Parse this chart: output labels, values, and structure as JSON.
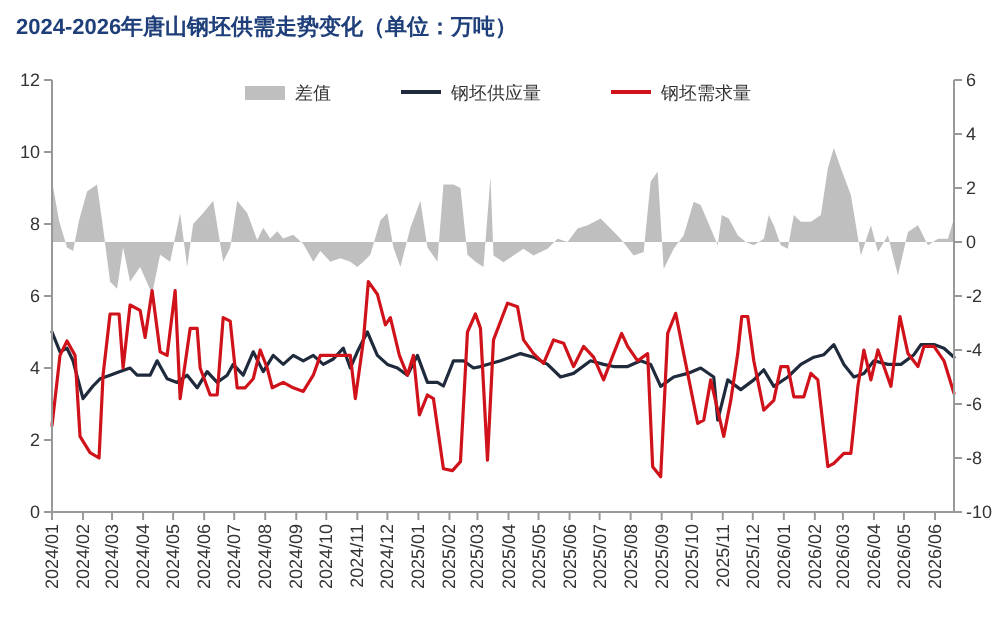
{
  "chart_data": {
    "type": "line",
    "title": "2024-2026年唐山钢坯供需走势变化（单位：万吨）",
    "legend": "top",
    "xlim": [
      "2024-01-01",
      "2026-06-20"
    ],
    "xticks": [
      {
        "value": "2024-01-01",
        "label": "2024/01"
      },
      {
        "value": "2024-02-01",
        "label": "2024/02"
      },
      {
        "value": "2024-03-01",
        "label": "2024/03"
      },
      {
        "value": "2024-04-01",
        "label": "2024/04"
      },
      {
        "value": "2024-05-01",
        "label": "2024/05"
      },
      {
        "value": "2024-06-01",
        "label": "2024/06"
      },
      {
        "value": "2024-07-01",
        "label": "2024/07"
      },
      {
        "value": "2024-08-01",
        "label": "2024/08"
      },
      {
        "value": "2024-09-01",
        "label": "2024/09"
      },
      {
        "value": "2024-10-01",
        "label": "2024/10"
      },
      {
        "value": "2024-11-01",
        "label": "2024/11"
      },
      {
        "value": "2024-12-01",
        "label": "2024/12"
      },
      {
        "value": "2025-01-01",
        "label": "2025/01"
      },
      {
        "value": "2025-02-01",
        "label": "2025/02"
      },
      {
        "value": "2025-03-01",
        "label": "2025/03"
      },
      {
        "value": "2025-04-01",
        "label": "2025/04"
      },
      {
        "value": "2025-05-01",
        "label": "2025/05"
      },
      {
        "value": "2025-06-01",
        "label": "2025/06"
      },
      {
        "value": "2025-07-01",
        "label": "2025/07"
      },
      {
        "value": "2025-08-01",
        "label": "2025/08"
      },
      {
        "value": "2025-09-01",
        "label": "2025/09"
      },
      {
        "value": "2025-10-01",
        "label": "2025/10"
      },
      {
        "value": "2025-11-01",
        "label": "2025/11"
      },
      {
        "value": "2025-12-01",
        "label": "2025/12"
      },
      {
        "value": "2026-01-01",
        "label": "2026/01"
      },
      {
        "value": "2026-02-01",
        "label": "2026/02"
      },
      {
        "value": "2026-03-01",
        "label": "2026/03"
      },
      {
        "value": "2026-04-01",
        "label": "2026/04"
      },
      {
        "value": "2026-05-01",
        "label": "2026/05"
      },
      {
        "value": "2026-06-01",
        "label": "2026/06"
      }
    ],
    "ylim": [
      0,
      12
    ],
    "yticks": [
      0,
      2,
      4,
      6,
      8,
      10,
      12
    ],
    "y2lim": [
      -10,
      6
    ],
    "y2ticks": [
      -10,
      -8,
      -6,
      -4,
      -2,
      0,
      2,
      4,
      6
    ],
    "series": [
      {
        "name": "差值",
        "type": "area",
        "axis": "y2",
        "color": "#bfbfbf",
        "x": [
          "2024-01-01",
          "2024-01-08",
          "2024-01-16",
          "2024-01-22",
          "2024-01-28",
          "2024-02-05",
          "2024-02-15",
          "2024-02-21",
          "2024-02-28",
          "2024-03-06",
          "2024-03-12",
          "2024-03-19",
          "2024-03-29",
          "2024-04-10",
          "2024-04-18",
          "2024-04-28",
          "2024-05-08",
          "2024-05-15",
          "2024-05-21",
          "2024-05-31",
          "2024-06-10",
          "2024-06-20",
          "2024-06-27",
          "2024-07-04",
          "2024-07-14",
          "2024-07-24",
          "2024-07-30",
          "2024-08-06",
          "2024-08-13",
          "2024-08-19",
          "2024-08-29",
          "2024-09-08",
          "2024-09-18",
          "2024-09-25",
          "2024-10-05",
          "2024-10-15",
          "2024-10-25",
          "2024-11-01",
          "2024-11-07",
          "2024-11-14",
          "2024-11-24",
          "2024-12-01",
          "2024-12-07",
          "2024-12-14",
          "2024-12-24",
          "2025-01-03",
          "2025-01-10",
          "2025-01-20",
          "2025-01-26",
          "2025-02-05",
          "2025-02-12",
          "2025-02-19",
          "2025-02-27",
          "2025-03-07",
          "2025-03-14",
          "2025-03-17",
          "2025-03-27",
          "2025-04-06",
          "2025-04-16",
          "2025-04-26",
          "2025-05-10",
          "2025-05-20",
          "2025-05-30",
          "2025-06-09",
          "2025-06-19",
          "2025-07-02",
          "2025-07-12",
          "2025-07-22",
          "2025-08-04",
          "2025-08-14",
          "2025-08-21",
          "2025-08-28",
          "2025-09-03",
          "2025-09-13",
          "2025-09-23",
          "2025-10-03",
          "2025-10-10",
          "2025-10-20",
          "2025-10-27",
          "2025-10-31",
          "2025-11-07",
          "2025-11-16",
          "2025-11-24",
          "2025-12-02",
          "2025-12-12",
          "2025-12-17",
          "2025-12-22",
          "2025-12-29",
          "2026-01-05",
          "2026-01-11",
          "2026-01-18",
          "2026-01-28",
          "2026-02-07",
          "2026-02-14",
          "2026-02-20",
          "2026-02-27",
          "2026-03-09",
          "2026-03-19",
          "2026-03-29",
          "2026-04-05",
          "2026-04-15",
          "2026-04-25",
          "2026-05-05",
          "2026-05-15",
          "2026-05-25",
          "2026-06-04",
          "2026-06-14",
          "2026-06-20"
        ],
        "values": [
          2.27,
          0.8,
          -0.2,
          -0.33,
          0.8,
          1.87,
          2.13,
          0.53,
          -1.47,
          -1.73,
          -0.2,
          -1.47,
          -0.93,
          -1.93,
          -0.47,
          -0.73,
          1.07,
          -0.93,
          0.67,
          1.07,
          1.53,
          -0.73,
          -0.2,
          1.53,
          1.07,
          0.07,
          0.53,
          0.13,
          0.4,
          0.13,
          0.27,
          -0.07,
          -0.73,
          -0.33,
          -0.73,
          -0.6,
          -0.73,
          -0.93,
          -0.73,
          -0.47,
          0.8,
          1.07,
          -0.2,
          -0.93,
          0.53,
          1.53,
          -0.2,
          -0.73,
          2.13,
          2.13,
          2.0,
          -0.47,
          -0.73,
          -0.93,
          2.4,
          -0.5,
          -0.75,
          -0.5,
          -0.25,
          -0.5,
          -0.25,
          0.12,
          0,
          0.5,
          0.62,
          0.87,
          0.5,
          0.12,
          -0.5,
          -0.37,
          2.24,
          2.61,
          -1.0,
          -0.25,
          0.25,
          1.49,
          1.37,
          0.5,
          -0.12,
          1.0,
          0.87,
          0.25,
          0,
          -0.12,
          0.12,
          1.0,
          0.62,
          -0.12,
          -0.25,
          1.0,
          0.75,
          0.75,
          1.0,
          2.73,
          3.48,
          2.73,
          1.74,
          -0.5,
          0.62,
          -0.37,
          0.25,
          -1.24,
          0.37,
          0.62,
          -0.12,
          0.12,
          0.12,
          0.87
        ]
      },
      {
        "name": "钢坯供应量",
        "color": "#1f2a3c",
        "x": [
          "2024-01-01",
          "2024-01-09",
          "2024-01-16",
          "2024-01-22",
          "2024-02-01",
          "2024-02-11",
          "2024-02-18",
          "2024-02-28",
          "2024-03-09",
          "2024-03-19",
          "2024-03-26",
          "2024-04-08",
          "2024-04-15",
          "2024-04-25",
          "2024-05-05",
          "2024-05-15",
          "2024-05-25",
          "2024-06-04",
          "2024-06-14",
          "2024-06-24",
          "2024-06-30",
          "2024-07-10",
          "2024-07-20",
          "2024-07-30",
          "2024-08-09",
          "2024-08-19",
          "2024-08-29",
          "2024-09-08",
          "2024-09-18",
          "2024-09-28",
          "2024-10-08",
          "2024-10-18",
          "2024-10-25",
          "2024-11-01",
          "2024-11-11",
          "2024-11-21",
          "2024-12-01",
          "2024-12-11",
          "2024-12-21",
          "2024-12-31",
          "2025-01-10",
          "2025-01-20",
          "2025-01-26",
          "2025-02-05",
          "2025-02-15",
          "2025-02-25",
          "2025-03-04",
          "2025-03-24",
          "2025-04-13",
          "2025-04-26",
          "2025-05-10",
          "2025-05-23",
          "2025-06-05",
          "2025-06-22",
          "2025-07-05",
          "2025-07-15",
          "2025-07-29",
          "2025-08-11",
          "2025-08-21",
          "2025-08-31",
          "2025-09-13",
          "2025-09-27",
          "2025-10-10",
          "2025-10-23",
          "2025-10-27",
          "2025-11-06",
          "2025-11-19",
          "2025-12-02",
          "2025-12-12",
          "2025-12-22",
          "2026-01-05",
          "2026-01-18",
          "2026-01-31",
          "2026-02-10",
          "2026-02-20",
          "2026-03-02",
          "2026-03-12",
          "2026-03-22",
          "2026-04-01",
          "2026-04-15",
          "2026-04-28",
          "2026-05-11",
          "2026-05-18",
          "2026-05-31",
          "2026-06-10",
          "2026-06-20"
        ],
        "values": [
          5.0,
          4.45,
          4.55,
          4.2,
          3.15,
          3.5,
          3.7,
          3.8,
          3.9,
          4.0,
          3.8,
          3.8,
          4.2,
          3.7,
          3.6,
          3.8,
          3.45,
          3.9,
          3.6,
          3.8,
          4.1,
          3.8,
          4.45,
          3.9,
          4.35,
          4.1,
          4.35,
          4.2,
          4.35,
          4.1,
          4.25,
          4.55,
          4.0,
          4.45,
          5.0,
          4.35,
          4.1,
          4.0,
          3.8,
          4.35,
          3.6,
          3.6,
          3.5,
          4.2,
          4.2,
          4.0,
          4.04,
          4.2,
          4.4,
          4.3,
          4.1,
          3.75,
          3.85,
          4.2,
          4.1,
          4.04,
          4.04,
          4.2,
          4.1,
          3.49,
          3.75,
          3.85,
          4.0,
          3.75,
          2.55,
          3.67,
          3.4,
          3.67,
          3.95,
          3.49,
          3.75,
          4.1,
          4.3,
          4.37,
          4.65,
          4.1,
          3.75,
          3.85,
          4.2,
          4.1,
          4.1,
          4.37,
          4.65,
          4.65,
          4.55,
          4.3
        ]
      },
      {
        "name": "钢坯需求量",
        "color": "#d0121b",
        "x": [
          "2024-01-01",
          "2024-01-09",
          "2024-01-16",
          "2024-01-24",
          "2024-01-29",
          "2024-02-08",
          "2024-02-17",
          "2024-02-21",
          "2024-02-28",
          "2024-03-08",
          "2024-03-12",
          "2024-03-19",
          "2024-03-29",
          "2024-04-03",
          "2024-04-10",
          "2024-04-18",
          "2024-04-25",
          "2024-05-03",
          "2024-05-08",
          "2024-05-18",
          "2024-05-25",
          "2024-05-28",
          "2024-06-07",
          "2024-06-14",
          "2024-06-20",
          "2024-06-27",
          "2024-07-04",
          "2024-07-12",
          "2024-07-20",
          "2024-07-27",
          "2024-08-03",
          "2024-08-08",
          "2024-08-19",
          "2024-08-29",
          "2024-09-08",
          "2024-09-18",
          "2024-09-25",
          "2024-10-02",
          "2024-10-08",
          "2024-10-15",
          "2024-10-25",
          "2024-10-30",
          "2024-11-07",
          "2024-11-12",
          "2024-11-21",
          "2024-11-29",
          "2024-12-04",
          "2024-12-13",
          "2024-12-21",
          "2024-12-27",
          "2025-01-02",
          "2025-01-10",
          "2025-01-16",
          "2025-01-26",
          "2025-02-04",
          "2025-02-12",
          "2025-02-19",
          "2025-02-27",
          "2025-03-04",
          "2025-03-11",
          "2025-03-17",
          "2025-03-31",
          "2025-04-10",
          "2025-04-16",
          "2025-04-26",
          "2025-05-06",
          "2025-05-16",
          "2025-05-26",
          "2025-06-05",
          "2025-06-15",
          "2025-06-25",
          "2025-07-05",
          "2025-07-15",
          "2025-07-23",
          "2025-07-29",
          "2025-08-08",
          "2025-08-18",
          "2025-08-23",
          "2025-08-31",
          "2025-09-07",
          "2025-09-15",
          "2025-09-23",
          "2025-10-07",
          "2025-10-13",
          "2025-10-20",
          "2025-11-02",
          "2025-11-09",
          "2025-11-16",
          "2025-11-20",
          "2025-11-26",
          "2025-12-02",
          "2025-12-12",
          "2025-12-22",
          "2025-12-29",
          "2026-01-05",
          "2026-01-11",
          "2026-01-21",
          "2026-01-28",
          "2026-02-04",
          "2026-02-14",
          "2026-02-20",
          "2026-03-02",
          "2026-03-09",
          "2026-03-16",
          "2026-03-22",
          "2026-03-29",
          "2026-04-05",
          "2026-04-11",
          "2026-04-18",
          "2026-04-27",
          "2026-05-05",
          "2026-05-15",
          "2026-05-21",
          "2026-05-31",
          "2026-06-10",
          "2026-06-20"
        ],
        "values": [
          2.4,
          4.35,
          4.75,
          4.35,
          2.1,
          1.65,
          1.5,
          3.8,
          5.5,
          5.5,
          4.0,
          5.75,
          5.6,
          4.85,
          6.15,
          4.45,
          4.35,
          6.15,
          3.15,
          5.1,
          5.1,
          4.0,
          3.25,
          3.25,
          5.4,
          5.3,
          3.45,
          3.45,
          3.7,
          4.5,
          4.0,
          3.45,
          3.6,
          3.45,
          3.35,
          3.8,
          4.35,
          4.35,
          4.35,
          4.35,
          4.35,
          3.15,
          4.75,
          6.4,
          6.05,
          5.2,
          5.4,
          4.35,
          3.8,
          4.35,
          2.7,
          3.25,
          3.15,
          1.2,
          1.15,
          1.4,
          5.0,
          5.5,
          5.1,
          1.44,
          4.78,
          5.8,
          5.7,
          4.78,
          4.4,
          4.13,
          4.78,
          4.69,
          4.04,
          4.6,
          4.3,
          3.67,
          4.4,
          4.96,
          4.6,
          4.2,
          4.4,
          1.26,
          0.98,
          4.96,
          5.52,
          4.4,
          2.46,
          2.55,
          3.67,
          2.1,
          3.1,
          4.4,
          5.43,
          5.43,
          4.2,
          2.83,
          3.1,
          4.04,
          4.04,
          3.2,
          3.2,
          3.85,
          3.67,
          1.26,
          1.35,
          1.63,
          1.63,
          3.49,
          4.5,
          3.67,
          4.5,
          4.04,
          3.49,
          5.43,
          4.4,
          4.04,
          4.6,
          4.6,
          4.2,
          3.3
        ]
      }
    ]
  }
}
